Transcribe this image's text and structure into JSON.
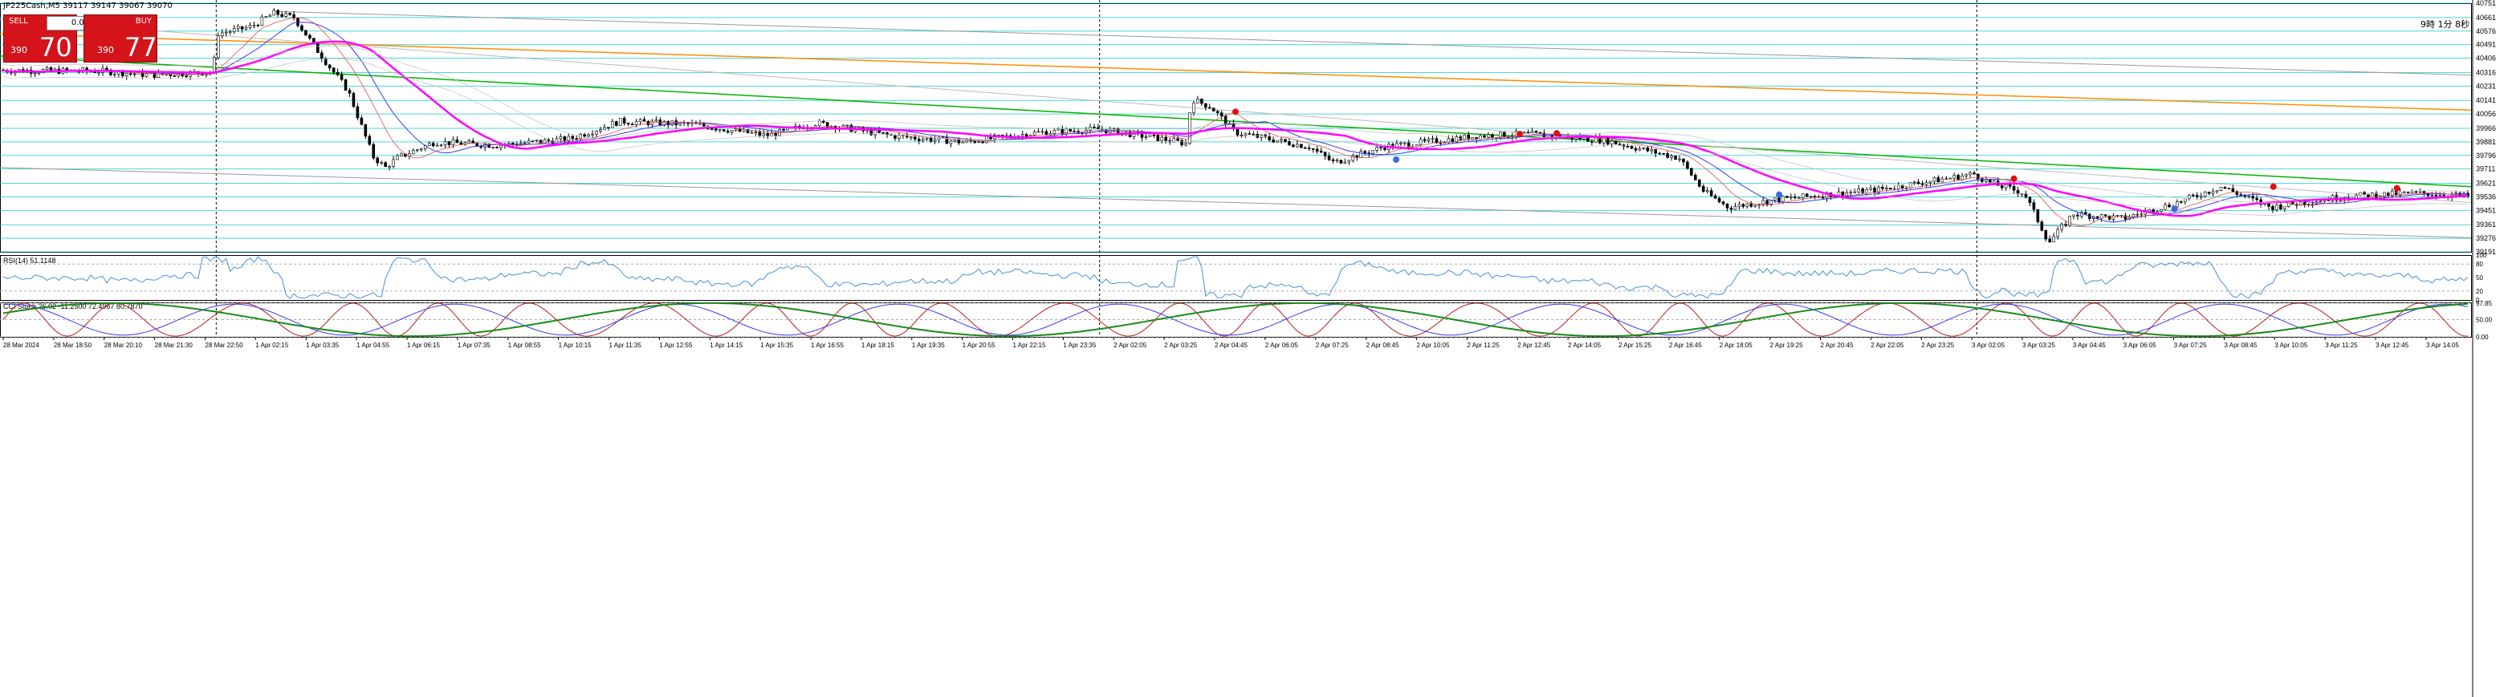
{
  "header": {
    "symbol_line": "JP225Cash,M5  39117 39147 39067 39070"
  },
  "trade_panel": {
    "sell_label": "SELL",
    "buy_label": "BUY",
    "lot": "0.00",
    "sell_small": "390",
    "sell_big": "70",
    "buy_small": "390",
    "buy_big": "77"
  },
  "clock_text": "9時 1分 8秒",
  "colors": {
    "bull": "#000000",
    "bear": "#000000",
    "ma_magenta": "#ff00ff",
    "ma_green": "#00b400",
    "ma_orange": "#ff8c00",
    "ma_blue": "#3a3af0",
    "rsi": "#4a90d9",
    "grid_cyan": "#00c8c8",
    "stoch_red": "#b41e1e"
  },
  "chart_data": [
    {
      "type": "candlestick",
      "panel": "price",
      "title": "JP225Cash,M5",
      "y_ticks": [
        40751,
        40661,
        40576,
        40491,
        40406,
        40316,
        40231,
        40141,
        40056,
        39966,
        39881,
        39796,
        39711,
        39621,
        39536,
        39451,
        39361,
        39276,
        39191
      ],
      "ylim": [
        39191,
        40751
      ],
      "x_tick_labels": [
        "28 Mar 2024",
        "28 Mar 18:50",
        "28 Mar 20:10",
        "28 Mar 21:30",
        "28 Mar 22:50",
        "1 Apr 02:15",
        "1 Apr 03:35",
        "1 Apr 04:55",
        "1 Apr 06:15",
        "1 Apr 07:35",
        "1 Apr 08:55",
        "1 Apr 10:15",
        "1 Apr 11:35",
        "1 Apr 12:55",
        "1 Apr 14:15",
        "1 Apr 15:35",
        "1 Apr 16:55",
        "1 Apr 18:15",
        "1 Apr 19:35",
        "1 Apr 20:55",
        "1 Apr 22:15",
        "1 Apr 23:35",
        "2 Apr 02:05",
        "2 Apr 03:25",
        "2 Apr 04:45",
        "2 Apr 06:05",
        "2 Apr 07:25",
        "2 Apr 08:45",
        "2 Apr 10:05",
        "2 Apr 11:25",
        "2 Apr 12:45",
        "2 Apr 14:05",
        "2 Apr 15:25",
        "2 Apr 16:45",
        "2 Apr 18:05",
        "2 Apr 19:25",
        "2 Apr 20:45",
        "2 Apr 22:05",
        "2 Apr 23:25",
        "3 Apr 02:05",
        "3 Apr 03:25",
        "3 Apr 04:45",
        "3 Apr 06:05",
        "3 Apr 07:25",
        "3 Apr 08:45",
        "3 Apr 10:05",
        "3 Apr 11:25",
        "3 Apr 12:45",
        "3 Apr 14:05"
      ],
      "price_path": [
        [
          0,
          40330
        ],
        [
          0.04,
          40325
        ],
        [
          0.06,
          40300
        ],
        [
          0.085,
          40320
        ],
        [
          0.087,
          40560
        ],
        [
          0.1,
          40600
        ],
        [
          0.11,
          40690
        ],
        [
          0.118,
          40660
        ],
        [
          0.13,
          40400
        ],
        [
          0.14,
          40200
        ],
        [
          0.15,
          39790
        ],
        [
          0.155,
          39720
        ],
        [
          0.16,
          39780
        ],
        [
          0.175,
          39880
        ],
        [
          0.2,
          39860
        ],
        [
          0.23,
          39900
        ],
        [
          0.25,
          40010
        ],
        [
          0.28,
          39990
        ],
        [
          0.31,
          39920
        ],
        [
          0.33,
          40000
        ],
        [
          0.36,
          39920
        ],
        [
          0.39,
          39880
        ],
        [
          0.42,
          39940
        ],
        [
          0.445,
          39960
        ],
        [
          0.47,
          39900
        ],
        [
          0.48,
          39870
        ],
        [
          0.482,
          40150
        ],
        [
          0.49,
          40100
        ],
        [
          0.5,
          39940
        ],
        [
          0.51,
          39910
        ],
        [
          0.53,
          39850
        ],
        [
          0.54,
          39750
        ],
        [
          0.56,
          39850
        ],
        [
          0.6,
          39920
        ],
        [
          0.62,
          39930
        ],
        [
          0.65,
          39890
        ],
        [
          0.68,
          39780
        ],
        [
          0.69,
          39570
        ],
        [
          0.7,
          39470
        ],
        [
          0.72,
          39520
        ],
        [
          0.76,
          39580
        ],
        [
          0.8,
          39680
        ],
        [
          0.805,
          39630
        ],
        [
          0.82,
          39560
        ],
        [
          0.83,
          39250
        ],
        [
          0.84,
          39430
        ],
        [
          0.86,
          39400
        ],
        [
          0.88,
          39490
        ],
        [
          0.9,
          39600
        ],
        [
          0.92,
          39470
        ],
        [
          0.95,
          39540
        ],
        [
          0.98,
          39560
        ],
        [
          1.0,
          39540
        ]
      ]
    },
    {
      "type": "line",
      "panel": "indicator",
      "title": "RSI(14) 51.1148",
      "y_ticks": [
        100,
        80,
        50,
        20,
        0
      ],
      "ylim": [
        0,
        100
      ]
    },
    {
      "type": "line",
      "panel": "indicator",
      "title": "CCI Stoch 26.02 -11.2500 72.4967 80.7870",
      "y_ticks": [
        97.85,
        50.0,
        0.0
      ],
      "ylim": [
        0,
        100
      ]
    }
  ]
}
